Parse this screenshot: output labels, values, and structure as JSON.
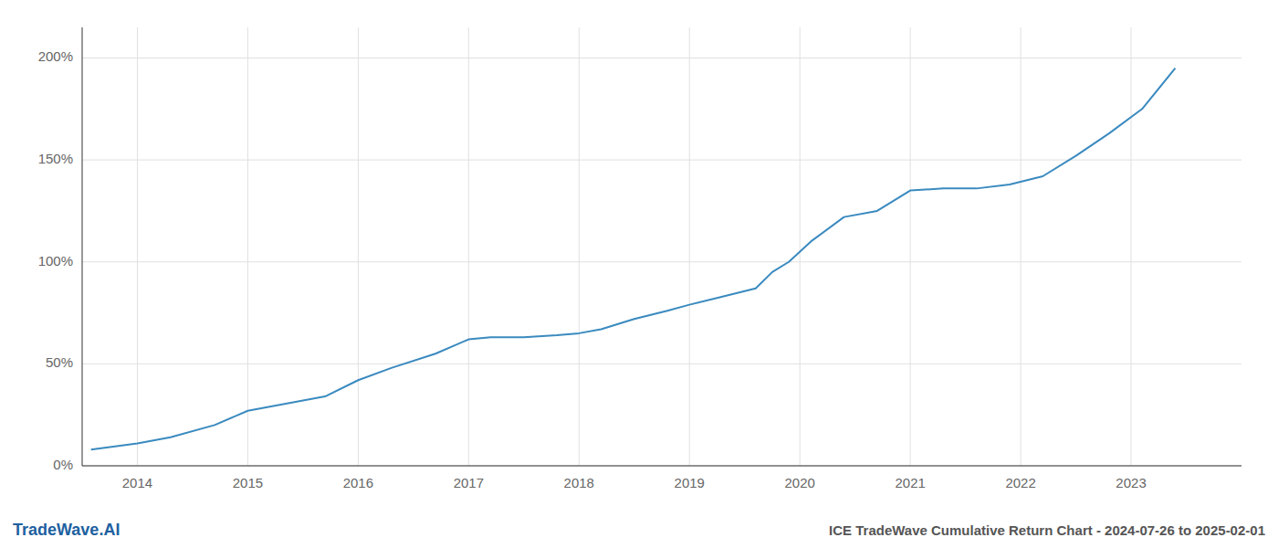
{
  "chart_data": {
    "type": "line",
    "title": "ICE TradeWave Cumulative Return Chart - 2024-07-26 to 2025-02-01",
    "annotations": [
      "TradeWave.AI"
    ],
    "x": [
      2013.58,
      2014.0,
      2014.3,
      2014.7,
      2015.0,
      2015.3,
      2015.7,
      2016.0,
      2016.3,
      2016.7,
      2017.0,
      2017.2,
      2017.5,
      2017.8,
      2018.0,
      2018.2,
      2018.5,
      2018.8,
      2019.0,
      2019.3,
      2019.6,
      2019.75,
      2019.9,
      2020.1,
      2020.4,
      2020.7,
      2021.0,
      2021.3,
      2021.6,
      2021.9,
      2022.2,
      2022.5,
      2022.8,
      2023.1,
      2023.4
    ],
    "values": [
      8,
      11,
      14,
      20,
      27,
      30,
      34,
      42,
      48,
      55,
      62,
      63,
      63,
      64,
      65,
      67,
      72,
      76,
      79,
      83,
      87,
      95,
      100,
      110,
      122,
      125,
      135,
      136,
      136,
      138,
      142,
      152,
      163,
      175,
      195
    ],
    "color": "#3a8abf",
    "xlim": [
      2013.5,
      2024.0
    ],
    "xticks": [
      2014,
      2015,
      2016,
      2017,
      2018,
      2019,
      2020,
      2021,
      2022,
      2023
    ],
    "ylim": [
      0,
      215
    ],
    "yticks": [
      {
        "value": 0,
        "label": "0%"
      },
      {
        "value": 50,
        "label": "50%"
      },
      {
        "value": 100,
        "label": "100%"
      },
      {
        "value": 150,
        "label": "150%"
      },
      {
        "value": 200,
        "label": "200%"
      }
    ],
    "grid": true
  }
}
